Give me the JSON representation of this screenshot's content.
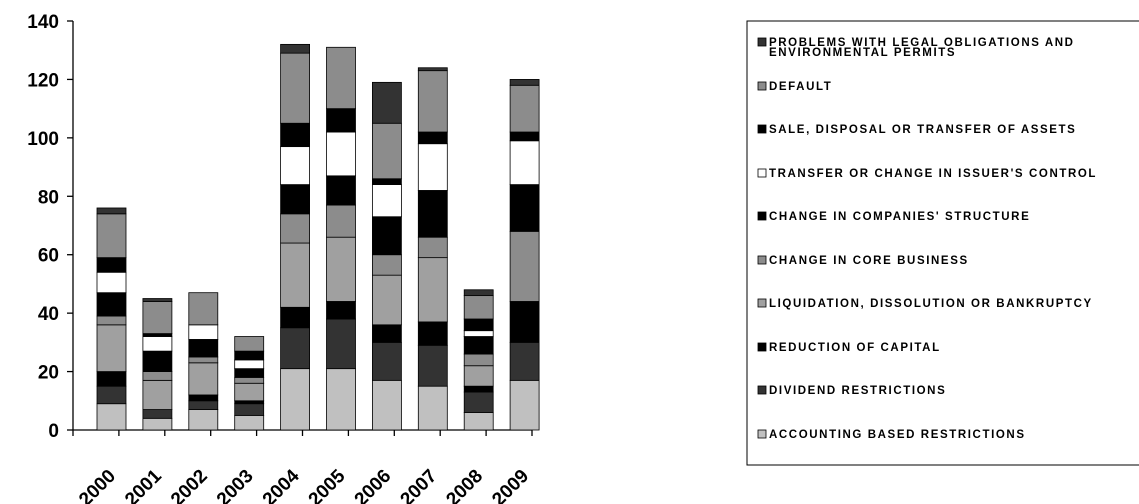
{
  "chart_data": {
    "type": "bar",
    "stacked": true,
    "categories": [
      "2000",
      "2001",
      "2002",
      "2003",
      "2004",
      "2005",
      "2006",
      "2007",
      "2008",
      "2009"
    ],
    "ylim": [
      0,
      140
    ],
    "yticks": [
      0,
      20,
      40,
      60,
      80,
      100,
      120,
      140
    ],
    "grid": false,
    "legend_position": "right",
    "series": [
      {
        "name": "ACCOUNTING BASED RESTRICTIONS",
        "color": "#c0c0c0",
        "values": [
          9,
          4,
          7,
          5,
          21,
          21,
          17,
          15,
          6,
          17
        ]
      },
      {
        "name": "DIVIDEND RESTRICTIONS",
        "color": "#333333",
        "values": [
          6,
          3,
          3,
          4,
          14,
          17,
          13,
          14,
          7,
          13
        ]
      },
      {
        "name": "REDUCTION OF CAPITAL",
        "color": "#000000",
        "values": [
          5,
          0,
          2,
          1,
          7,
          6,
          6,
          8,
          2,
          14
        ]
      },
      {
        "name": "LIQUIDATION, DISSOLUTION OR BANKRUPTCY",
        "color": "#a0a0a0",
        "values": [
          16,
          10,
          11,
          6,
          22,
          22,
          17,
          22,
          7,
          0
        ]
      },
      {
        "name": "CHANGE IN CORE BUSINESS",
        "color": "#8c8c8c",
        "values": [
          3,
          3,
          2,
          2,
          10,
          11,
          7,
          7,
          4,
          24
        ]
      },
      {
        "name": "CHANGE IN COMPANIES' STRUCTURE",
        "color": "#000000",
        "values": [
          8,
          7,
          6,
          3,
          10,
          10,
          13,
          16,
          6,
          16
        ]
      },
      {
        "name": "TRANSFER OR CHANGE IN ISSUER'S CONTROL",
        "color": "#ffffff",
        "values": [
          7,
          5,
          5,
          3,
          13,
          15,
          11,
          16,
          2,
          15
        ]
      },
      {
        "name": "SALE, DISPOSAL OR TRANSFER OF ASSETS",
        "color": "#000000",
        "values": [
          5,
          1,
          0,
          3,
          8,
          8,
          2,
          4,
          4,
          3
        ]
      },
      {
        "name": "DEFAULT",
        "color": "#8c8c8c",
        "values": [
          15,
          11,
          11,
          5,
          24,
          21,
          19,
          21,
          8,
          16
        ]
      },
      {
        "name": "PROBLEMS WITH LEGAL OBLIGATIONS AND ENVIRONMENTAL PERMITS",
        "color": "#333333",
        "values": [
          2,
          1,
          0,
          0,
          3,
          0,
          14,
          1,
          2,
          2
        ]
      }
    ],
    "legend_lines": [
      [
        "PROBLEMS WITH LEGAL OBLIGATIONS AND",
        "ENVIRONMENTAL PERMITS"
      ],
      [
        "DEFAULT"
      ],
      [
        "SALE, DISPOSAL OR TRANSFER OF ASSETS"
      ],
      [
        "TRANSFER OR CHANGE IN ISSUER'S CONTROL"
      ],
      [
        "CHANGE IN COMPANIES' STRUCTURE"
      ],
      [
        "CHANGE IN CORE BUSINESS"
      ],
      [
        "LIQUIDATION, DISSOLUTION OR BANKRUPTCY"
      ],
      [
        "REDUCTION OF CAPITAL"
      ],
      [
        "DIVIDEND RESTRICTIONS"
      ],
      [
        "ACCOUNTING BASED RESTRICTIONS"
      ]
    ]
  }
}
